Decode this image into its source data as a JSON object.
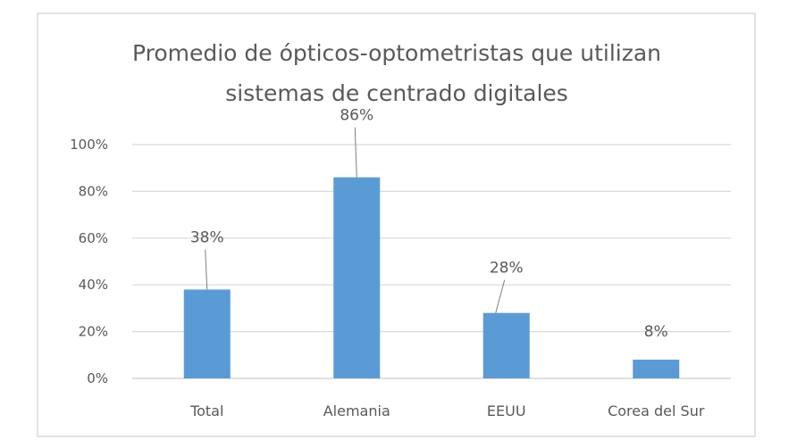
{
  "chart_data": {
    "type": "bar",
    "title_lines": [
      "Promedio de ópticos-optometristas  que utilizan",
      "sistemas de centrado digitales"
    ],
    "categories": [
      "Total",
      "Alemania",
      "EEUU",
      "Corea del Sur"
    ],
    "values": [
      38,
      86,
      28,
      8
    ],
    "data_labels": [
      "38%",
      "86%",
      "28%",
      "8%"
    ],
    "y_ticks": [
      "0%",
      "20%",
      "40%",
      "60%",
      "80%",
      "100%"
    ],
    "ylim": [
      0,
      100
    ],
    "grid": true,
    "legend": "none",
    "colors": {
      "bar": "#5b9bd5",
      "grid": "#d9d9d9",
      "text": "#595959",
      "leader": "#7f7f7f",
      "frame": "#d9d9d9"
    }
  }
}
